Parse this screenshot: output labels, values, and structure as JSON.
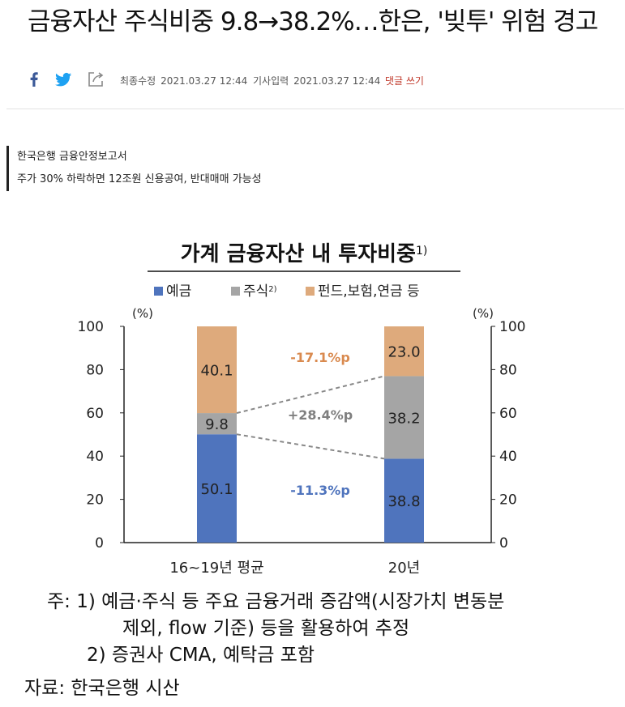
{
  "article": {
    "headline": "금융자산 주식비중 9.8→38.2%…한은, '빚투' 위험 경고",
    "modified_label": "최종수정",
    "modified_time": "2021.03.27 12:44",
    "published_label": "기사입력",
    "published_time": "2021.03.27 12:44",
    "comment_link": "댓글 쓰기",
    "subheads": [
      "한국은행 금융안정보고서",
      "주가 30% 하락하면 12조원 신용공여, 반대매매 가능성"
    ]
  },
  "share": {
    "icons": [
      "facebook-icon",
      "twitter-icon",
      "share-icon"
    ],
    "colors": {
      "facebook": "#3b5998",
      "twitter": "#1da1f2"
    }
  },
  "chart_data": {
    "type": "bar",
    "stacked": true,
    "title": "가계 금융자산 내 투자비중",
    "title_note": "1)",
    "categories": [
      "16~19년 평균",
      "20년"
    ],
    "series": [
      {
        "name": "예금",
        "values": [
          50.1,
          38.8
        ],
        "color": "#4f74bd",
        "value_labels": [
          "50.1",
          "38.8"
        ]
      },
      {
        "name": "주식",
        "name_note": "2)",
        "values": [
          9.8,
          38.2
        ],
        "color": "#a5a5a5",
        "value_labels": [
          "9.8",
          "38.2"
        ]
      },
      {
        "name": "펀드,보험,연금 등",
        "values": [
          40.1,
          23.0
        ],
        "color": "#deaa7c",
        "value_labels": [
          "40.1",
          "23.0"
        ]
      }
    ],
    "changes": [
      {
        "label": "-17.1%p",
        "series": "펀드,보험,연금 등",
        "color": "#d98a4f"
      },
      {
        "label": "+28.4%p",
        "series": "주식",
        "color": "#7f7f7f"
      },
      {
        "label": "-11.3%p",
        "series": "예금",
        "color": "#4f74bd"
      }
    ],
    "y_unit": "(%)",
    "ylim": [
      0,
      100
    ],
    "yticks": [
      0,
      20,
      40,
      60,
      80,
      100
    ],
    "grid": false,
    "legend_position": "top",
    "notes": [
      "주: 1) 예금·주식 등 주요 금융거래 증감액(시장가치 변동분",
      "제외, flow 기준) 등을 활용하여 추정",
      "2) 증권사 CMA, 예탁금 포함",
      "자료: 한국은행 시산"
    ]
  }
}
